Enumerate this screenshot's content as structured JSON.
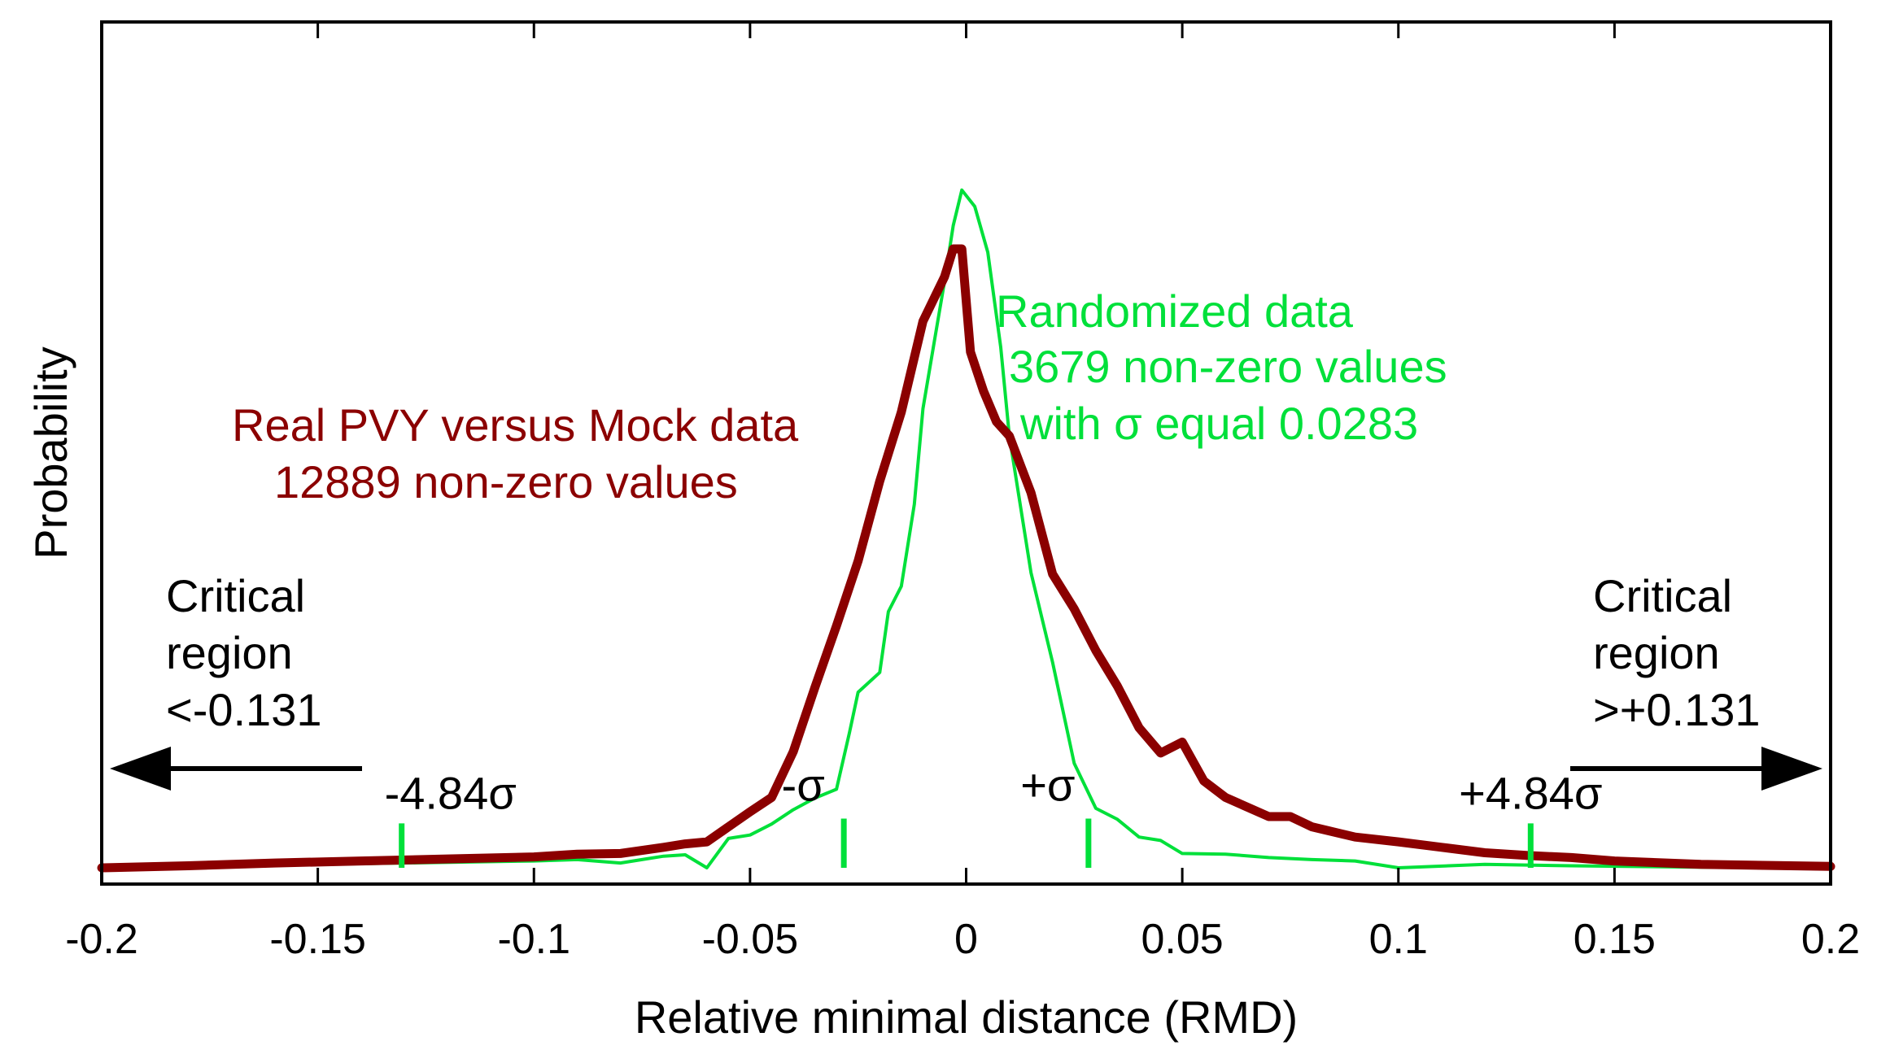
{
  "chart_data": {
    "type": "line",
    "title": "",
    "xlabel": "Relative minimal distance (RMD)",
    "ylabel": "Probability",
    "xlim": [
      -0.2,
      0.2
    ],
    "ylim": [
      0,
      1
    ],
    "grid": false,
    "y_ticks_labeled": false,
    "xticks": [
      -0.2,
      -0.15,
      -0.1,
      -0.05,
      0,
      0.05,
      0.1,
      0.15,
      0.2
    ],
    "xtick_labels": [
      "-0.2",
      "-0.15",
      "-0.1",
      "-0.05",
      "0",
      "0.05",
      "0.1",
      "0.15",
      "0.2"
    ],
    "series": [
      {
        "label_lines": [
          "Real PVY versus Mock data",
          "12889 non-zero values"
        ],
        "color": "#8b0000",
        "x": [
          -0.2,
          -0.18,
          -0.16,
          -0.14,
          -0.12,
          -0.1,
          -0.09,
          -0.08,
          -0.07,
          -0.065,
          -0.06,
          -0.055,
          -0.05,
          -0.045,
          -0.04,
          -0.035,
          -0.03,
          -0.025,
          -0.02,
          -0.015,
          -0.01,
          -0.005,
          -0.003,
          -0.001,
          0.001,
          0.004,
          0.007,
          0.01,
          0.015,
          0.02,
          0.025,
          0.03,
          0.035,
          0.04,
          0.045,
          0.05,
          0.055,
          0.06,
          0.07,
          0.075,
          0.08,
          0.09,
          0.1,
          0.11,
          0.12,
          0.13,
          0.14,
          0.15,
          0.17,
          0.2
        ],
        "y": [
          0.0,
          0.003,
          0.007,
          0.01,
          0.013,
          0.016,
          0.02,
          0.021,
          0.03,
          0.035,
          0.038,
          0.06,
          0.082,
          0.103,
          0.17,
          0.264,
          0.354,
          0.449,
          0.566,
          0.667,
          0.8,
          0.865,
          0.906,
          0.906,
          0.755,
          0.698,
          0.653,
          0.632,
          0.549,
          0.43,
          0.379,
          0.318,
          0.266,
          0.205,
          0.168,
          0.184,
          0.127,
          0.103,
          0.075,
          0.075,
          0.06,
          0.045,
          0.038,
          0.03,
          0.022,
          0.018,
          0.015,
          0.01,
          0.005,
          0.002
        ]
      },
      {
        "label_lines": [
          "Randomized data",
          "3679 non-zero values",
          "with σ equal 0.0283"
        ],
        "color": "#00e03a",
        "x": [
          -0.2,
          -0.15,
          -0.1,
          -0.09,
          -0.08,
          -0.075,
          -0.07,
          -0.065,
          -0.06,
          -0.055,
          -0.05,
          -0.045,
          -0.04,
          -0.035,
          -0.03,
          -0.027,
          -0.025,
          -0.02,
          -0.018,
          -0.015,
          -0.012,
          -0.01,
          -0.007,
          -0.005,
          -0.003,
          -0.001,
          0.002,
          0.005,
          0.008,
          0.01,
          0.015,
          0.02,
          0.025,
          0.03,
          0.035,
          0.04,
          0.045,
          0.05,
          0.06,
          0.07,
          0.08,
          0.09,
          0.1,
          0.12,
          0.14,
          0.17,
          0.2
        ],
        "y": [
          0.0,
          0.005,
          0.01,
          0.012,
          0.007,
          0.012,
          0.017,
          0.019,
          0.0,
          0.043,
          0.048,
          0.064,
          0.085,
          0.102,
          0.115,
          0.198,
          0.257,
          0.286,
          0.375,
          0.412,
          0.532,
          0.672,
          0.784,
          0.858,
          0.94,
          0.992,
          0.968,
          0.901,
          0.762,
          0.632,
          0.432,
          0.301,
          0.153,
          0.087,
          0.071,
          0.045,
          0.04,
          0.021,
          0.02,
          0.015,
          0.012,
          0.01,
          0.0,
          0.005,
          0.003,
          0.001,
          0.0
        ]
      }
    ],
    "markers": [
      {
        "x": -0.1306,
        "height": 0.065,
        "label": "-4.84σ"
      },
      {
        "x": -0.0283,
        "height": 0.072,
        "label": "-σ"
      },
      {
        "x": 0.0283,
        "height": 0.072,
        "label": "+σ"
      },
      {
        "x": 0.1306,
        "height": 0.065,
        "label": "+4.84σ"
      }
    ],
    "critical_regions": [
      {
        "side": "left",
        "lines": [
          "Critical",
          "region",
          "<-0.131"
        ]
      },
      {
        "side": "right",
        "lines": [
          "Critical",
          "region",
          ">+0.131"
        ]
      }
    ]
  }
}
